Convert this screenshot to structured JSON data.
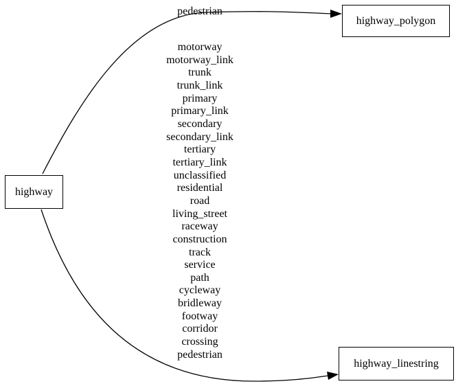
{
  "nodes": {
    "source": "highway",
    "polygon": "highway_polygon",
    "linestring": "highway_linestring"
  },
  "edges": {
    "to_polygon": {
      "labels": [
        "pedestrian"
      ]
    },
    "to_linestring": {
      "labels": [
        "motorway",
        "motorway_link",
        "trunk",
        "trunk_link",
        "primary",
        "primary_link",
        "secondary",
        "secondary_link",
        "tertiary",
        "tertiary_link",
        "unclassified",
        "residential",
        "road",
        "living_street",
        "raceway",
        "construction",
        "track",
        "service",
        "path",
        "cycleway",
        "bridleway",
        "footway",
        "corridor",
        "crossing",
        "pedestrian"
      ]
    }
  }
}
